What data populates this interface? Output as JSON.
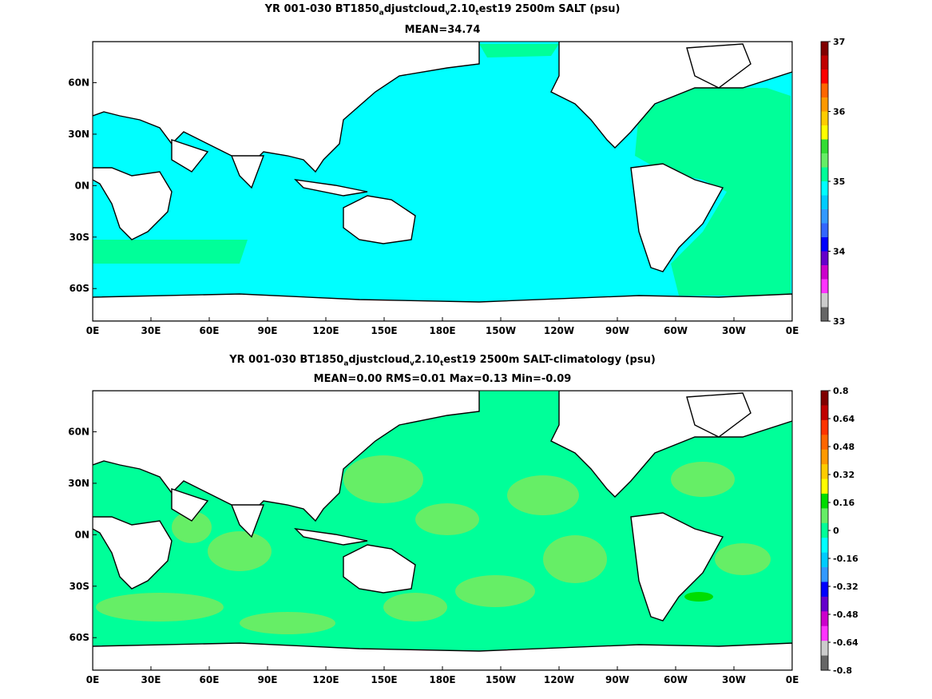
{
  "chart_data": [
    {
      "type": "heatmap",
      "title_parts": [
        "YR 001-030 BT1850",
        "a",
        "djustcloud",
        "v",
        "2.10",
        "t",
        "est19 2500m SALT (psu)"
      ],
      "subtitle": "MEAN=34.74",
      "x_ticks": [
        "0E",
        "30E",
        "60E",
        "90E",
        "120E",
        "150E",
        "180E",
        "150W",
        "120W",
        "90W",
        "60W",
        "30W",
        "0E"
      ],
      "y_ticks": [
        "60N",
        "30N",
        "0N",
        "30S",
        "60S"
      ],
      "colorbar": {
        "labels": [
          "37",
          "36",
          "35",
          "34",
          "33"
        ],
        "colors": [
          "#800000",
          "#c00000",
          "#ff0000",
          "#ff6600",
          "#ff9900",
          "#ffcc00",
          "#ffff00",
          "#33dd33",
          "#66ee66",
          "#00ff99",
          "#00ffff",
          "#00ccff",
          "#3399ff",
          "#3366ff",
          "#0000ff",
          "#6600cc",
          "#cc00cc",
          "#ff33ff",
          "#cccccc",
          "#666666"
        ]
      },
      "ocean_fields": [
        {
          "region": "Pacific/Indian/Southern",
          "value": 34.7,
          "color": "#00ffff"
        },
        {
          "region": "Atlantic",
          "value": 34.9,
          "color": "#00ff99"
        }
      ]
    },
    {
      "type": "heatmap",
      "title_parts": [
        "YR 001-030 BT1850",
        "a",
        "djustcloud",
        "v",
        "2.10",
        "t",
        "est19 2500m SALT-climatology (psu)"
      ],
      "subtitle": "MEAN=0.00   RMS=0.01   Max=0.13   Min=-0.09",
      "x_ticks": [
        "0E",
        "30E",
        "60E",
        "90E",
        "120E",
        "150E",
        "180E",
        "150W",
        "120W",
        "90W",
        "60W",
        "30W",
        "0E"
      ],
      "y_ticks": [
        "60N",
        "30N",
        "0N",
        "30S",
        "60S"
      ],
      "colorbar": {
        "labels": [
          "0.8",
          "0.64",
          "0.48",
          "0.32",
          "0.16",
          "0",
          "-0.16",
          "-0.32",
          "-0.48",
          "-0.64",
          "-0.8"
        ],
        "colors": [
          "#800000",
          "#c00000",
          "#ff3300",
          "#ff6600",
          "#ff9900",
          "#ffcc00",
          "#ffff00",
          "#00dd00",
          "#66ee66",
          "#00ff99",
          "#00ffff",
          "#00ccff",
          "#3399ff",
          "#0000ff",
          "#6600cc",
          "#cc00cc",
          "#ff33ff",
          "#cccccc",
          "#666666"
        ]
      },
      "ocean_fields": [
        {
          "region": "most ocean",
          "value": 0.0,
          "color": "#00ff99"
        },
        {
          "region": "patches",
          "value": 0.08,
          "color": "#66ee66"
        }
      ]
    }
  ]
}
